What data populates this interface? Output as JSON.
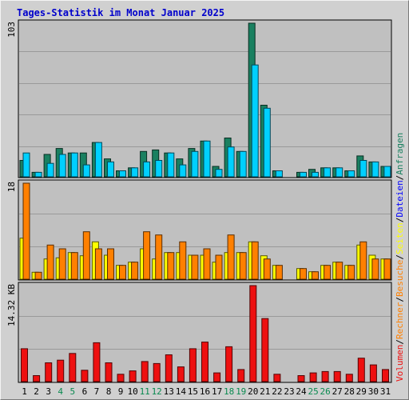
{
  "chart_data": {
    "type": "bar",
    "title": "Tages-Statistik im Monat Januar 2025",
    "categories": [
      "1",
      "2",
      "3",
      "4",
      "5",
      "6",
      "7",
      "8",
      "9",
      "10",
      "11",
      "12",
      "13",
      "14",
      "15",
      "16",
      "17",
      "18",
      "19",
      "20",
      "21",
      "22",
      "23",
      "24",
      "25",
      "26",
      "27",
      "28",
      "29",
      "30",
      "31"
    ],
    "weekend_days": [
      "4",
      "5",
      "11",
      "12",
      "18",
      "19",
      "25",
      "26"
    ],
    "panels": [
      {
        "axis_label": "103",
        "max": 103,
        "series": [
          {
            "name": "Anfragen",
            "color": "#1a8060",
            "values": [
              11,
              3,
              15,
              19,
              16,
              16,
              23,
              12,
              4,
              6,
              17,
              18,
              16,
              12,
              19,
              24,
              7,
              26,
              17,
              103,
              48,
              4,
              0,
              3,
              5,
              6,
              6,
              4,
              14,
              10,
              7
            ]
          },
          {
            "name": "Dateien",
            "color": "#00d0ff",
            "values": [
              16,
              3,
              9,
              15,
              16,
              8,
              23,
              10,
              4,
              6,
              10,
              11,
              16,
              8,
              17,
              24,
              5,
              20,
              17,
              75,
              46,
              4,
              0,
              3,
              3,
              6,
              6,
              4,
              11,
              10,
              7
            ]
          }
        ]
      },
      {
        "axis_label": "18",
        "max": 18,
        "series": [
          {
            "name": "Seiten",
            "color": "#ffff00",
            "values": [
              7.7,
              1.3,
              3.8,
              4,
              5,
              4.4,
              7,
              4.5,
              2.6,
              3.2,
              5.7,
              3.8,
              5,
              5,
              4.5,
              4.5,
              3.2,
              5,
              5,
              7,
              4.4,
              2.6,
              0,
              2,
              1.4,
              2.6,
              3.2,
              2.6,
              6.4,
              4.5,
              3.8
            ]
          },
          {
            "name": "Besuche",
            "color": "#ff8000",
            "values": [
              18,
              1.3,
              6.4,
              5.7,
              5,
              8.9,
              5.7,
              5.7,
              2.6,
              3.2,
              8.9,
              8.3,
              5,
              7,
              4.5,
              5.7,
              4.5,
              8.3,
              5,
              7,
              3.8,
              2.6,
              0,
              2,
              1.4,
              2.6,
              3.2,
              2.6,
              7,
              3.8,
              3.8
            ]
          }
        ]
      },
      {
        "axis_label": "14.32 KB",
        "max": 14.32,
        "series": [
          {
            "name": "Volumen",
            "color": "#ee1010",
            "values": [
              4.9,
              0.9,
              2.8,
              3.2,
              4.2,
              1.7,
              5.8,
              2.8,
              1.1,
              1.6,
              3,
              2.7,
              4,
              2.2,
              4.9,
              5.9,
              1.3,
              5.2,
              1.8,
              14.32,
              9.4,
              1.1,
              0,
              0.9,
              1.3,
              1.5,
              1.5,
              1.1,
              3.5,
              2.5,
              1.8
            ]
          }
        ]
      }
    ],
    "legend_right": [
      {
        "text": "Volumen",
        "color": "#ee1010"
      },
      {
        "text": "Rechner",
        "color": "#ff8000"
      },
      {
        "text": "Besuche",
        "color": "#ff8000"
      },
      {
        "text": "Seiten",
        "color": "#ffff00"
      },
      {
        "text": "Dateien",
        "color": "#0000ff"
      },
      {
        "text": "Anfragen",
        "color": "#1a8060"
      }
    ],
    "colors": {
      "plot_bg": "#c0c0c0",
      "grid": "#9a9a9a",
      "weekday_label": "#000000",
      "weekend_label": "#0a8a50"
    }
  }
}
